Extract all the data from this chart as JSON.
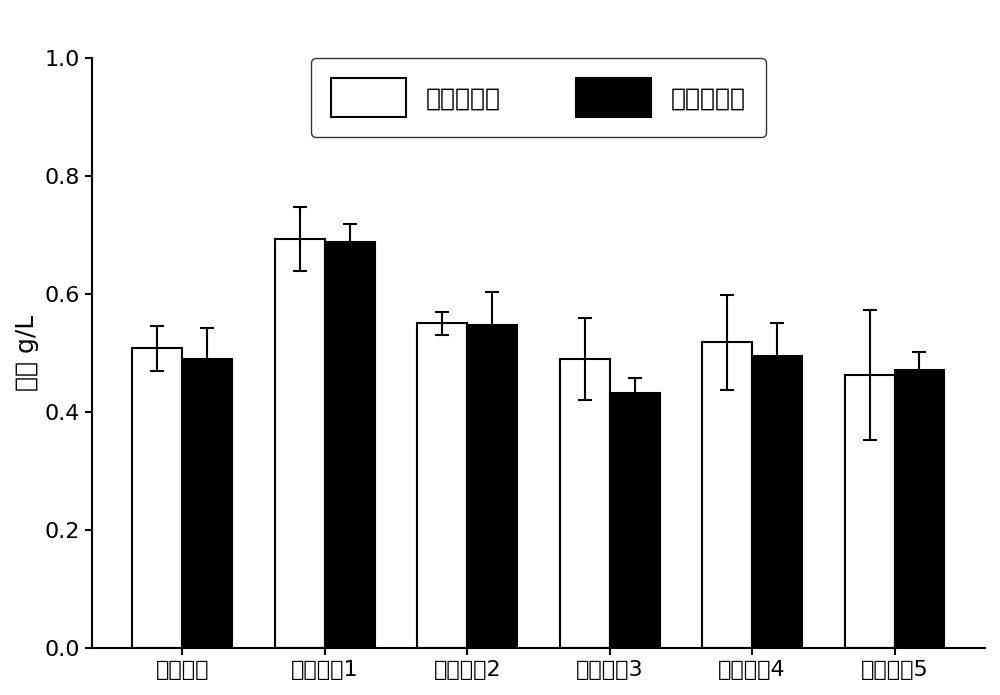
{
  "categories": [
    "初始培养",
    "循环培养1",
    "循环培养2",
    "循环培养3",
    "循环培养4",
    "循环培养5"
  ],
  "fresh_values": [
    0.508,
    0.693,
    0.55,
    0.49,
    0.518,
    0.463
  ],
  "fresh_errors": [
    0.038,
    0.055,
    0.02,
    0.07,
    0.08,
    0.11
  ],
  "recycle_values": [
    0.49,
    0.688,
    0.548,
    0.432,
    0.495,
    0.472
  ],
  "recycle_errors": [
    0.052,
    0.03,
    0.055,
    0.025,
    0.055,
    0.03
  ],
  "ylabel": "干重 g/L",
  "ylim": [
    0.0,
    1.0
  ],
  "yticks": [
    0.0,
    0.2,
    0.4,
    0.6,
    0.8,
    1.0
  ],
  "legend_fresh": "新鲜培养基",
  "legend_recycle": "循环培养基",
  "bar_width": 0.35,
  "fresh_color": "#ffffff",
  "recycle_color": "#000000",
  "bar_edgecolor": "#000000",
  "background_color": "#ffffff",
  "label_fontsize": 18,
  "tick_fontsize": 16,
  "legend_fontsize": 18
}
